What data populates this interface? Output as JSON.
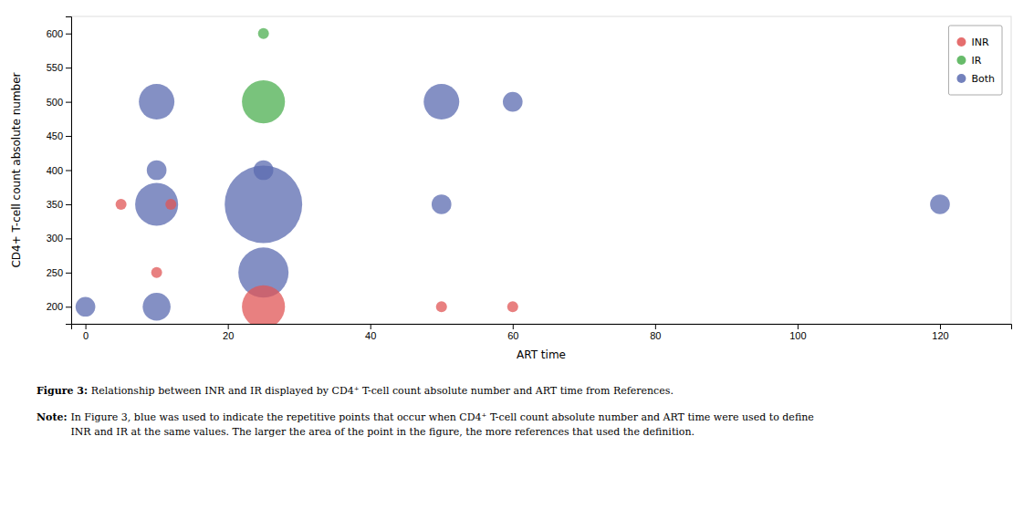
{
  "chart_data": {
    "type": "scatter",
    "xlabel": "ART time",
    "ylabel": "CD4+ T-cell count absolute number",
    "series": [
      {
        "name": "INR",
        "color": "#E05555",
        "x": [
          5,
          12,
          10,
          25,
          50,
          60
        ],
        "values": [
          350,
          350,
          250,
          200,
          200,
          200
        ],
        "sizes": [
          1,
          1,
          1,
          5,
          1,
          1
        ]
      },
      {
        "name": "IR",
        "color": "#4CAF50",
        "x": [
          25,
          25
        ],
        "values": [
          600,
          500
        ],
        "sizes": [
          1,
          5
        ]
      },
      {
        "name": "Both",
        "color": "#5B6BB0",
        "x": [
          0,
          10,
          10,
          10,
          10,
          25,
          25,
          25,
          50,
          50,
          60,
          120
        ],
        "values": [
          200,
          200,
          350,
          400,
          500,
          400,
          350,
          250,
          500,
          350,
          500,
          350
        ],
        "sizes": [
          2,
          3,
          5,
          2,
          4,
          2,
          10,
          6,
          4,
          2,
          2,
          2
        ]
      }
    ],
    "xlim": [
      -2,
      130
    ],
    "ylim": [
      175,
      625
    ],
    "xticks": [
      0,
      20,
      40,
      60,
      80,
      100,
      120
    ],
    "yticks": [
      200,
      250,
      300,
      350,
      400,
      450,
      500,
      550,
      600
    ],
    "legend": "upper right",
    "grid": false,
    "annotations": [
      {
        "label": "Figure 3:",
        "text": [
          "Relationship between INR and IR displayed by CD4⁺ T-cell count absolute number and ART time from References."
        ]
      },
      {
        "label": "Note:",
        "text": [
          "In Figure 3, blue was used to indicate the repetitive points that occur when CD4⁺ T-cell count absolute number and ART time were used to define",
          "INR and IR at the same values. The larger the area of the point in the figure, the more references that used the definition."
        ]
      }
    ]
  }
}
